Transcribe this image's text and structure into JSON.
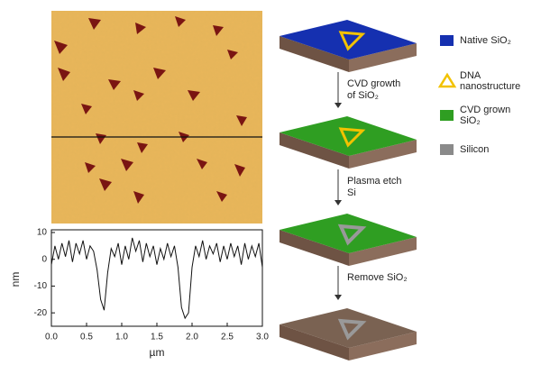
{
  "chart_data": {
    "type": "line",
    "x_label": "µm",
    "y_label": "nm",
    "x": [
      0,
      0.05,
      0.1,
      0.15,
      0.2,
      0.25,
      0.3,
      0.35,
      0.4,
      0.45,
      0.5,
      0.55,
      0.6,
      0.65,
      0.7,
      0.75,
      0.8,
      0.85,
      0.9,
      0.95,
      1.0,
      1.05,
      1.1,
      1.15,
      1.2,
      1.25,
      1.3,
      1.35,
      1.4,
      1.45,
      1.5,
      1.55,
      1.6,
      1.65,
      1.7,
      1.75,
      1.8,
      1.85,
      1.9,
      1.95,
      2.0,
      2.05,
      2.1,
      2.15,
      2.2,
      2.25,
      2.3,
      2.35,
      2.4,
      2.45,
      2.5,
      2.55,
      2.6,
      2.65,
      2.7,
      2.75,
      2.8,
      2.85,
      2.9,
      2.95,
      3.0
    ],
    "series": [
      {
        "color": "#111111",
        "values": [
          -2,
          5,
          0,
          6,
          1,
          7,
          -1,
          6,
          2,
          7,
          0,
          5,
          3,
          -4,
          -15,
          -19,
          -5,
          4,
          1,
          6,
          -2,
          5,
          0,
          8,
          3,
          7,
          -1,
          6,
          1,
          5,
          -2,
          4,
          0,
          6,
          1,
          5,
          -3,
          -18,
          -22,
          -20,
          -3,
          5,
          1,
          7,
          0,
          5,
          2,
          6,
          -1,
          5,
          0,
          6,
          1,
          5,
          -2,
          6,
          0,
          5,
          1,
          6,
          -3
        ]
      }
    ],
    "xlim": [
      0,
      3
    ],
    "ylim": [
      -25,
      11
    ],
    "xticks": [
      {
        "value": 0,
        "label": "0.0"
      },
      0.5,
      {
        "value": 1,
        "label": "1.0"
      },
      1.5,
      {
        "value": 2,
        "label": "2.0"
      },
      2.5,
      {
        "value": 3,
        "label": "3.0"
      }
    ],
    "yticks": [
      -20,
      -10,
      0,
      10
    ]
  },
  "diagram": {
    "steps": [
      {
        "lines": [
          "CVD growth",
          "of SiO₂"
        ]
      },
      {
        "lines": [
          "Plasma etch",
          "Si"
        ]
      },
      {
        "lines": [
          "Remove SiO₂"
        ]
      }
    ],
    "legend": [
      {
        "lines": [
          "Native SiO₂"
        ],
        "color": "#1530b0",
        "shape": "square"
      },
      {
        "lines": [
          "DNA",
          "nanostructure"
        ],
        "color": "#f2c200",
        "shape": "triangle"
      },
      {
        "lines": [
          "CVD grown",
          "SiO₂"
        ],
        "color": "#2f9e22",
        "shape": "square"
      },
      {
        "lines": [
          "Silicon"
        ],
        "color": "#8a8a8a",
        "shape": "square"
      }
    ]
  }
}
